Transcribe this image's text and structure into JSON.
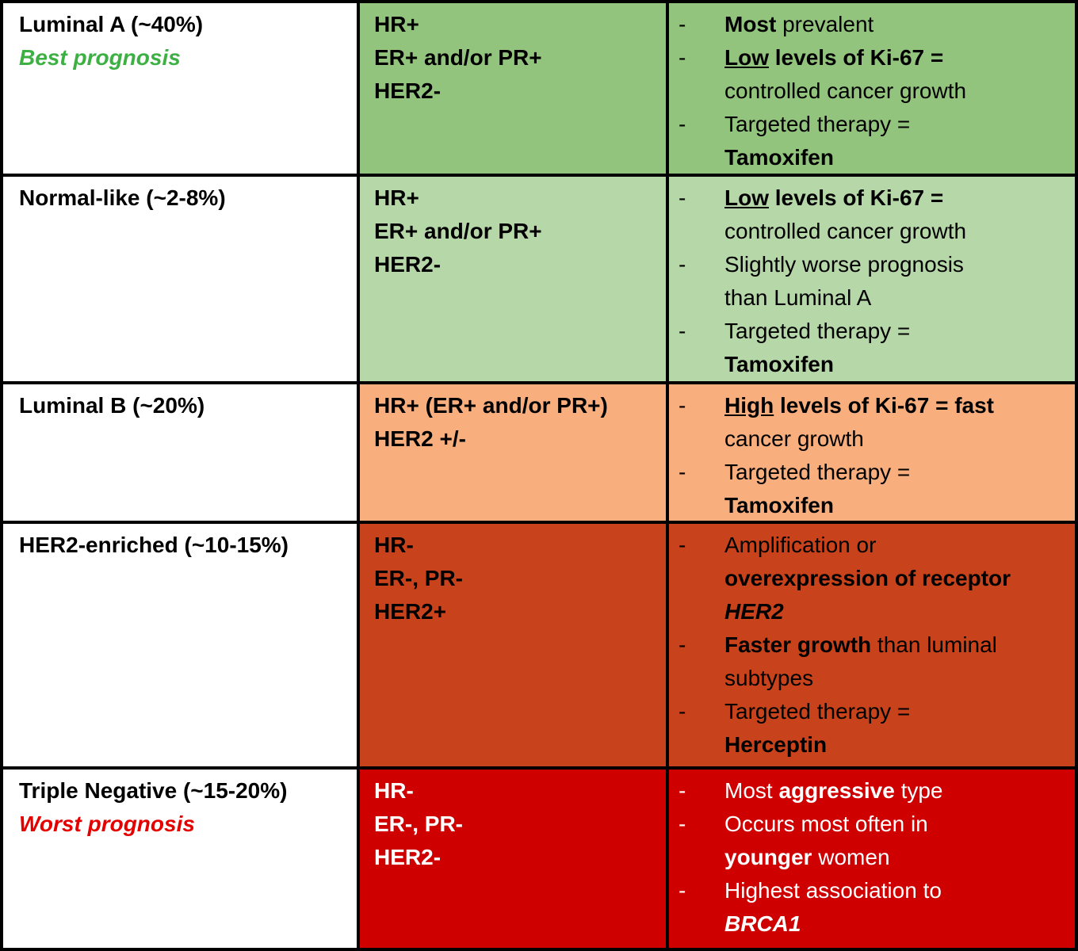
{
  "table": {
    "rows": [
      {
        "id": "luminal-a",
        "title": "Luminal A (~40%)",
        "subtitle": "Best prognosis",
        "subtitle_color": "#3CB043",
        "bg": "#93c47d",
        "text_color": "#000000",
        "receptors": [
          "HR+",
          "ER+ and/or PR+",
          "HER2-"
        ],
        "bullets": [
          [
            {
              "t": "Most",
              "b": true
            },
            {
              "t": " prevalent"
            }
          ],
          [
            {
              "t": "Low",
              "b": true,
              "u": true
            },
            {
              "t": " levels of Ki-67 =",
              "b": true
            },
            {
              "br": true
            },
            {
              "t": "controlled cancer growth"
            }
          ],
          [
            {
              "t": "Targeted therapy ="
            },
            {
              "br": true
            },
            {
              "t": "Tamoxifen",
              "b": true
            }
          ]
        ]
      },
      {
        "id": "normal-like",
        "title": "Normal-like (~2-8%)",
        "subtitle": "",
        "subtitle_color": "",
        "bg": "#b6d7a8",
        "text_color": "#000000",
        "receptors": [
          "HR+",
          "ER+ and/or PR+",
          "HER2-"
        ],
        "bullets": [
          [
            {
              "t": "Low",
              "b": true,
              "u": true
            },
            {
              "t": " levels of Ki-67 =",
              "b": true
            },
            {
              "br": true
            },
            {
              "t": "controlled cancer growth"
            }
          ],
          [
            {
              "t": "Slightly worse prognosis"
            },
            {
              "br": true
            },
            {
              "t": "than Luminal A"
            }
          ],
          [
            {
              "t": "Targeted therapy ="
            },
            {
              "br": true
            },
            {
              "t": "Tamoxifen",
              "b": true
            }
          ]
        ]
      },
      {
        "id": "luminal-b",
        "title": "Luminal B (~20%)",
        "subtitle": "",
        "subtitle_color": "",
        "bg": "#F9AE7E",
        "text_color": "#000000",
        "receptors": [
          "HR+ (ER+ and/or PR+)",
          "HER2 +/-"
        ],
        "bullets": [
          [
            {
              "t": "High",
              "b": true,
              "u": true
            },
            {
              "t": " levels of Ki-67 = fast",
              "b": true
            },
            {
              "br": true
            },
            {
              "t": "cancer growth"
            }
          ],
          [
            {
              "t": "Targeted therapy ="
            },
            {
              "br": true
            },
            {
              "t": "Tamoxifen",
              "b": true
            }
          ]
        ]
      },
      {
        "id": "her2-enriched",
        "title": "HER2-enriched (~10-15%)",
        "subtitle": "",
        "subtitle_color": "",
        "bg": "#C8431B",
        "text_color": "#000000",
        "receptors": [
          "HR-",
          "ER-, PR-",
          "HER2+"
        ],
        "bullets": [
          [
            {
              "t": "Amplification or"
            },
            {
              "br": true
            },
            {
              "t": "overexpression of receptor",
              "b": true
            },
            {
              "br": true
            },
            {
              "t": "HER2",
              "b": true,
              "i": true
            }
          ],
          [
            {
              "t": "Faster growth",
              "b": true
            },
            {
              "t": " than luminal"
            },
            {
              "br": true
            },
            {
              "t": "subtypes"
            }
          ],
          [
            {
              "t": "Targeted therapy ="
            },
            {
              "br": true
            },
            {
              "t": "Herceptin",
              "b": true
            }
          ]
        ]
      },
      {
        "id": "triple-negative",
        "title": "Triple Negative (~15-20%)",
        "subtitle": "Worst prognosis",
        "subtitle_color": "#E50000",
        "bg": "#CE0000",
        "text_color": "#ffffff",
        "receptors": [
          "HR-",
          "ER-, PR-",
          "HER2-"
        ],
        "bullets": [
          [
            {
              "t": "Most "
            },
            {
              "t": "aggressive",
              "b": true
            },
            {
              "t": " type"
            }
          ],
          [
            {
              "t": "Occurs most often in"
            },
            {
              "br": true
            },
            {
              "t": "younger",
              "b": true
            },
            {
              "t": " women"
            }
          ],
          [
            {
              "t": "Highest association to"
            },
            {
              "br": true
            },
            {
              "t": "BRCA1",
              "b": true,
              "i": true
            }
          ]
        ]
      }
    ]
  }
}
